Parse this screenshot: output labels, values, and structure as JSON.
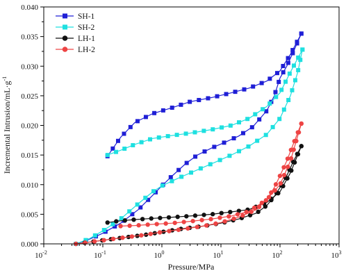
{
  "chart_data": {
    "type": "line",
    "xlabel": "Pressure/MPa",
    "ylabel": "Incremental Intrusion/mL·g",
    "ylabel_sup": "-1",
    "x_scale": "log",
    "xlim": [
      0.01,
      1000
    ],
    "ylim": [
      0,
      0.04
    ],
    "x_ticks": [
      {
        "value": 0.01,
        "base": "10",
        "exp": "-2"
      },
      {
        "value": 0.1,
        "base": "10",
        "exp": "-1"
      },
      {
        "value": 1,
        "base": "10",
        "exp": "0"
      },
      {
        "value": 10,
        "base": "10",
        "exp": "1"
      },
      {
        "value": 100,
        "base": "10",
        "exp": "2"
      },
      {
        "value": 1000,
        "base": "10",
        "exp": "3"
      }
    ],
    "y_ticks": [
      "0.000",
      "0.005",
      "0.010",
      "0.015",
      "0.020",
      "0.025",
      "0.030",
      "0.035",
      "0.040"
    ],
    "y_tick_values": [
      0,
      0.005,
      0.01,
      0.015,
      0.02,
      0.025,
      0.03,
      0.035,
      0.04
    ],
    "grid": false,
    "legend_position": "top-left",
    "series": [
      {
        "name": "SH-1",
        "color": "#1f1fd6",
        "marker": "square",
        "intrusion": [
          [
            0.035,
            0.0
          ],
          [
            0.06,
            0.0008
          ],
          [
            0.1,
            0.0018
          ],
          [
            0.2,
            0.0035
          ],
          [
            0.4,
            0.0058
          ],
          [
            0.7,
            0.0082
          ],
          [
            1.0,
            0.0098
          ],
          [
            1.5,
            0.0115
          ],
          [
            2.5,
            0.0135
          ],
          [
            4,
            0.015
          ],
          [
            7,
            0.0162
          ],
          [
            12,
            0.0172
          ],
          [
            20,
            0.0182
          ],
          [
            35,
            0.0198
          ],
          [
            60,
            0.0225
          ],
          [
            80,
            0.025
          ],
          [
            100,
            0.028
          ],
          [
            130,
            0.03
          ],
          [
            170,
            0.0325
          ],
          [
            230,
            0.0355
          ]
        ],
        "extrusion": [
          [
            230,
            0.0355
          ],
          [
            150,
            0.032
          ],
          [
            100,
            0.0292
          ],
          [
            60,
            0.0275
          ],
          [
            30,
            0.0263
          ],
          [
            15,
            0.0255
          ],
          [
            7,
            0.0247
          ],
          [
            3,
            0.024
          ],
          [
            1.5,
            0.023
          ],
          [
            0.7,
            0.022
          ],
          [
            0.35,
            0.0205
          ],
          [
            0.2,
            0.018
          ],
          [
            0.12,
            0.0148
          ]
        ]
      },
      {
        "name": "SH-2",
        "color": "#1ee0e0",
        "marker": "square",
        "intrusion": [
          [
            0.035,
            0.0
          ],
          [
            0.06,
            0.0009
          ],
          [
            0.1,
            0.0022
          ],
          [
            0.2,
            0.0042
          ],
          [
            0.4,
            0.0068
          ],
          [
            0.7,
            0.0088
          ],
          [
            1.0,
            0.0098
          ],
          [
            2,
            0.0112
          ],
          [
            4,
            0.0125
          ],
          [
            8,
            0.0138
          ],
          [
            15,
            0.015
          ],
          [
            30,
            0.0165
          ],
          [
            60,
            0.0185
          ],
          [
            100,
            0.0212
          ],
          [
            150,
            0.025
          ],
          [
            200,
            0.029
          ],
          [
            240,
            0.0328
          ]
        ],
        "extrusion": [
          [
            240,
            0.0328
          ],
          [
            150,
            0.029
          ],
          [
            100,
            0.0255
          ],
          [
            60,
            0.0232
          ],
          [
            30,
            0.0212
          ],
          [
            15,
            0.02
          ],
          [
            7,
            0.0193
          ],
          [
            3,
            0.0187
          ],
          [
            1.5,
            0.0183
          ],
          [
            0.7,
            0.0178
          ],
          [
            0.35,
            0.0168
          ],
          [
            0.2,
            0.0158
          ],
          [
            0.12,
            0.015
          ]
        ]
      },
      {
        "name": "LH-1",
        "color": "#111111",
        "marker": "circle",
        "intrusion": [
          [
            0.035,
            0.0
          ],
          [
            0.05,
            0.0002
          ],
          [
            0.1,
            0.0006
          ],
          [
            0.2,
            0.001
          ],
          [
            0.5,
            0.0015
          ],
          [
            1,
            0.002
          ],
          [
            2,
            0.0025
          ],
          [
            5,
            0.003
          ],
          [
            10,
            0.0035
          ],
          [
            20,
            0.0042
          ],
          [
            40,
            0.0052
          ],
          [
            60,
            0.0065
          ],
          [
            80,
            0.008
          ],
          [
            100,
            0.0095
          ],
          [
            130,
            0.0115
          ],
          [
            170,
            0.014
          ],
          [
            230,
            0.0165
          ]
        ],
        "extrusion": [
          [
            230,
            0.0165
          ],
          [
            150,
            0.012
          ],
          [
            100,
            0.0088
          ],
          [
            60,
            0.007
          ],
          [
            30,
            0.0058
          ],
          [
            15,
            0.0054
          ],
          [
            7,
            0.005
          ],
          [
            3,
            0.0047
          ],
          [
            1.5,
            0.0045
          ],
          [
            0.7,
            0.0043
          ],
          [
            0.35,
            0.0041
          ],
          [
            0.2,
            0.0039
          ],
          [
            0.12,
            0.0036
          ]
        ]
      },
      {
        "name": "LH-2",
        "color": "#ee4444",
        "marker": "circle",
        "intrusion": [
          [
            0.035,
            0.0
          ],
          [
            0.05,
            0.0002
          ],
          [
            0.1,
            0.0006
          ],
          [
            0.2,
            0.001
          ],
          [
            0.5,
            0.0015
          ],
          [
            1,
            0.002
          ],
          [
            2,
            0.0024
          ],
          [
            5,
            0.003
          ],
          [
            10,
            0.0036
          ],
          [
            20,
            0.0045
          ],
          [
            40,
            0.0058
          ],
          [
            60,
            0.0075
          ],
          [
            80,
            0.0095
          ],
          [
            100,
            0.0115
          ],
          [
            130,
            0.014
          ],
          [
            170,
            0.017
          ],
          [
            230,
            0.0203
          ]
        ],
        "extrusion": [
          [
            230,
            0.0203
          ],
          [
            150,
            0.014
          ],
          [
            100,
            0.01
          ],
          [
            60,
            0.0075
          ],
          [
            30,
            0.0055
          ],
          [
            15,
            0.0047
          ],
          [
            7,
            0.0042
          ],
          [
            3,
            0.0038
          ],
          [
            1.5,
            0.0035
          ],
          [
            0.7,
            0.0033
          ],
          [
            0.35,
            0.0031
          ],
          [
            0.2,
            0.003
          ]
        ]
      }
    ]
  }
}
